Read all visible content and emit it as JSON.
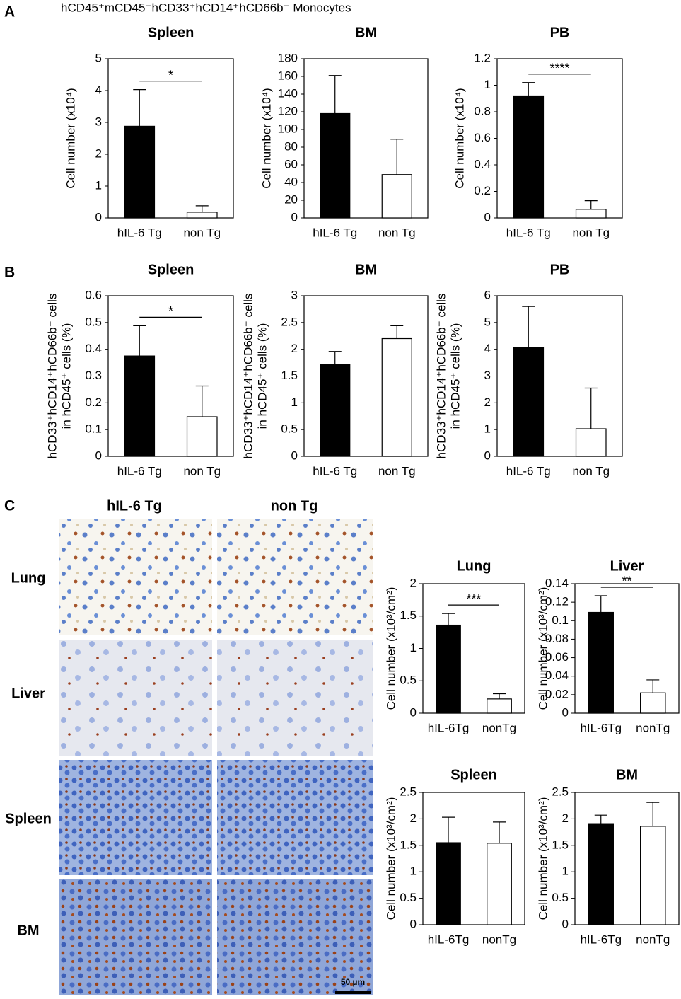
{
  "header": "hCD45⁺mCD45⁻hCD33⁺hCD14⁺hCD66b⁻ Monocytes",
  "panels": [
    "A",
    "B",
    "C"
  ],
  "image_columns": [
    "hIL-6 Tg",
    "non Tg"
  ],
  "image_rows": [
    "Lung",
    "Liver",
    "Spleen",
    "BM"
  ],
  "scale_bar": "50 µm",
  "chart_data": [
    {
      "type": "bar",
      "title": "Spleen",
      "ylabel": [
        "Cell number (x10⁴)"
      ],
      "categories": [
        "hIL-6 Tg",
        "non Tg"
      ],
      "values": [
        2.88,
        0.18
      ],
      "errors": [
        1.15,
        0.2
      ],
      "colors": [
        "#000000",
        "#ffffff"
      ],
      "ylim": [
        0,
        5
      ],
      "yticks": [
        0,
        1,
        2,
        3,
        4,
        5
      ],
      "annotation": "*"
    },
    {
      "type": "bar",
      "title": "BM",
      "ylabel": [
        "Cell number (x10⁴)"
      ],
      "categories": [
        "hIL-6 Tg",
        "non Tg"
      ],
      "values": [
        118,
        49
      ],
      "errors": [
        43,
        40
      ],
      "colors": [
        "#000000",
        "#ffffff"
      ],
      "ylim": [
        0,
        180
      ],
      "yticks": [
        0,
        20,
        40,
        60,
        80,
        100,
        120,
        140,
        160,
        180
      ]
    },
    {
      "type": "bar",
      "title": "PB",
      "ylabel": [
        "Cell number (x10⁴)"
      ],
      "categories": [
        "hIL-6 Tg",
        "non Tg"
      ],
      "values": [
        0.92,
        0.065
      ],
      "errors": [
        0.1,
        0.065
      ],
      "colors": [
        "#000000",
        "#ffffff"
      ],
      "ylim": [
        0,
        1.2
      ],
      "yticks": [
        0,
        0.2,
        0.4,
        0.6,
        0.8,
        1,
        1.2
      ],
      "annotation": "****"
    },
    {
      "type": "bar",
      "title": "Spleen",
      "ylabel": [
        "hCD33⁺hCD14⁺hCD66b⁻ cells",
        "in hCD45⁺ cells (%)"
      ],
      "categories": [
        "hIL-6 Tg",
        "non Tg"
      ],
      "values": [
        0.375,
        0.148
      ],
      "errors": [
        0.113,
        0.115
      ],
      "colors": [
        "#000000",
        "#ffffff"
      ],
      "ylim": [
        0,
        0.6
      ],
      "yticks": [
        0,
        0.1,
        0.2,
        0.3,
        0.4,
        0.5,
        0.6
      ],
      "annotation": "*"
    },
    {
      "type": "bar",
      "title": "BM",
      "ylabel": [
        "hCD33⁺hCD14⁺hCD66b⁻ cells",
        "in hCD45⁺ cells (%)"
      ],
      "categories": [
        "hIL-6 Tg",
        "non Tg"
      ],
      "values": [
        1.71,
        2.2
      ],
      "errors": [
        0.25,
        0.24
      ],
      "colors": [
        "#000000",
        "#ffffff"
      ],
      "ylim": [
        0,
        3
      ],
      "yticks": [
        0,
        0.5,
        1,
        1.5,
        2,
        2.5,
        3
      ]
    },
    {
      "type": "bar",
      "title": "PB",
      "ylabel": [
        "hCD33⁺hCD14⁺hCD66b⁻ cells",
        "in hCD45⁺ cells (%)"
      ],
      "categories": [
        "hIL-6 Tg",
        "non Tg"
      ],
      "values": [
        4.07,
        1.03
      ],
      "errors": [
        1.53,
        1.52
      ],
      "colors": [
        "#000000",
        "#ffffff"
      ],
      "ylim": [
        0,
        6
      ],
      "yticks": [
        0,
        1,
        2,
        3,
        4,
        5,
        6
      ]
    },
    {
      "type": "bar",
      "title": "Lung",
      "ylabel": [
        "Cell number (x10³/cm²)"
      ],
      "categories": [
        "hIL-6Tg",
        "nonTg"
      ],
      "values": [
        1.36,
        0.22
      ],
      "errors": [
        0.18,
        0.08
      ],
      "colors": [
        "#000000",
        "#ffffff"
      ],
      "ylim": [
        0,
        2
      ],
      "yticks": [
        0,
        0.5,
        1,
        1.5,
        2
      ],
      "annotation": "***"
    },
    {
      "type": "bar",
      "title": "Liver",
      "ylabel": [
        "Cell number (x10³/cm²)"
      ],
      "categories": [
        "hIL-6Tg",
        "nonTg"
      ],
      "values": [
        0.109,
        0.022
      ],
      "errors": [
        0.018,
        0.014
      ],
      "colors": [
        "#000000",
        "#ffffff"
      ],
      "ylim": [
        0,
        0.14
      ],
      "yticks": [
        0,
        0.02,
        0.04,
        0.06,
        0.08,
        0.1,
        0.12,
        0.14
      ],
      "annotation": "**"
    },
    {
      "type": "bar",
      "title": "Spleen",
      "ylabel": [
        "Cell number (x10³/cm²)"
      ],
      "categories": [
        "hIL-6Tg",
        "nonTg"
      ],
      "values": [
        1.55,
        1.54
      ],
      "errors": [
        0.48,
        0.4
      ],
      "colors": [
        "#000000",
        "#ffffff"
      ],
      "ylim": [
        0,
        2.5
      ],
      "yticks": [
        0,
        0.5,
        1,
        1.5,
        2,
        2.5
      ]
    },
    {
      "type": "bar",
      "title": "BM",
      "ylabel": [
        "Cell number (x10³/cm²)"
      ],
      "categories": [
        "hIL-6Tg",
        "nonTg"
      ],
      "values": [
        1.91,
        1.86
      ],
      "errors": [
        0.16,
        0.45
      ],
      "colors": [
        "#000000",
        "#ffffff"
      ],
      "ylim": [
        0,
        2.5
      ],
      "yticks": [
        0,
        0.5,
        1,
        1.5,
        2,
        2.5
      ]
    }
  ]
}
